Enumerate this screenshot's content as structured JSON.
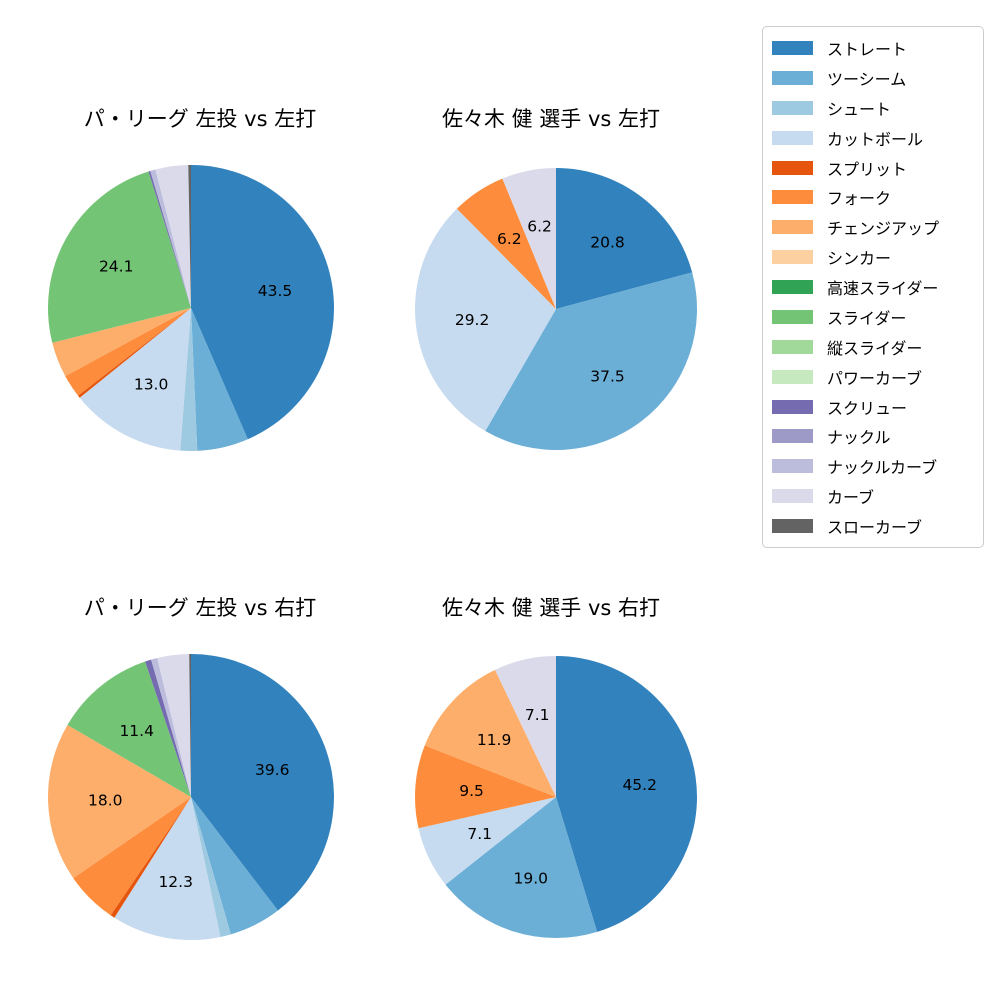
{
  "palette": {
    "ストレート": "#3182bd",
    "ツーシーム": "#6baed6",
    "シュート": "#9ecae1",
    "カットボール": "#c6dbef",
    "スプリット": "#e6550d",
    "フォーク": "#fd8d3c",
    "チェンジアップ": "#fdae6b",
    "シンカー": "#fdd0a2",
    "高速スライダー": "#31a354",
    "スライダー": "#74c476",
    "縦スライダー": "#a1d99b",
    "パワーカーブ": "#c7e9c0",
    "スクリュー": "#756bb1",
    "ナックル": "#9e9ac8",
    "ナックルカーブ": "#bcbddc",
    "カーブ": "#dadaeb",
    "スローカーブ": "#636363"
  },
  "legend": {
    "items": [
      {
        "label": "ストレート",
        "color": "#3182bd"
      },
      {
        "label": "ツーシーム",
        "color": "#6baed6"
      },
      {
        "label": "シュート",
        "color": "#9ecae1"
      },
      {
        "label": "カットボール",
        "color": "#c6dbef"
      },
      {
        "label": "スプリット",
        "color": "#e6550d"
      },
      {
        "label": "フォーク",
        "color": "#fd8d3c"
      },
      {
        "label": "チェンジアップ",
        "color": "#fdae6b"
      },
      {
        "label": "シンカー",
        "color": "#fdd0a2"
      },
      {
        "label": "高速スライダー",
        "color": "#31a354"
      },
      {
        "label": "スライダー",
        "color": "#74c476"
      },
      {
        "label": "縦スライダー",
        "color": "#a1d99b"
      },
      {
        "label": "パワーカーブ",
        "color": "#c7e9c0"
      },
      {
        "label": "スクリュー",
        "color": "#756bb1"
      },
      {
        "label": "ナックル",
        "color": "#9e9ac8"
      },
      {
        "label": "ナックルカーブ",
        "color": "#bcbddc"
      },
      {
        "label": "カーブ",
        "color": "#dadaeb"
      },
      {
        "label": "スローカーブ",
        "color": "#636363"
      }
    ]
  },
  "chart_data": [
    {
      "type": "pie",
      "title": "パ・リーグ 左投 vs 左打",
      "direction": "clockwise",
      "start": "top",
      "slices": [
        {
          "label": "ストレート",
          "value": 43.5,
          "pct_label": "43.5"
        },
        {
          "label": "ツーシーム",
          "value": 5.8,
          "pct_label": null
        },
        {
          "label": "シュート",
          "value": 1.9,
          "pct_label": null
        },
        {
          "label": "カットボール",
          "value": 13.0,
          "pct_label": "13.0"
        },
        {
          "label": "スプリット",
          "value": 0.3,
          "pct_label": null
        },
        {
          "label": "フォーク",
          "value": 2.6,
          "pct_label": null
        },
        {
          "label": "チェンジアップ",
          "value": 4.0,
          "pct_label": null
        },
        {
          "label": "スライダー",
          "value": 24.1,
          "pct_label": "24.1"
        },
        {
          "label": "スクリュー",
          "value": 0.2,
          "pct_label": null
        },
        {
          "label": "ナックルカーブ",
          "value": 0.6,
          "pct_label": null
        },
        {
          "label": "カーブ",
          "value": 3.7,
          "pct_label": null
        },
        {
          "label": "スローカーブ",
          "value": 0.3,
          "pct_label": null
        }
      ]
    },
    {
      "type": "pie",
      "title": "佐々木 健 選手 vs 左打",
      "direction": "clockwise",
      "start": "top",
      "slices": [
        {
          "label": "ストレート",
          "value": 20.8,
          "pct_label": "20.8"
        },
        {
          "label": "ツーシーム",
          "value": 37.5,
          "pct_label": "37.5"
        },
        {
          "label": "カットボール",
          "value": 29.2,
          "pct_label": "29.2"
        },
        {
          "label": "フォーク",
          "value": 6.2,
          "pct_label": "6.2"
        },
        {
          "label": "カーブ",
          "value": 6.2,
          "pct_label": "6.2"
        }
      ]
    },
    {
      "type": "pie",
      "title": "パ・リーグ 左投 vs 右打",
      "direction": "clockwise",
      "start": "top",
      "slices": [
        {
          "label": "ストレート",
          "value": 39.6,
          "pct_label": "39.6"
        },
        {
          "label": "ツーシーム",
          "value": 5.9,
          "pct_label": null
        },
        {
          "label": "シュート",
          "value": 1.2,
          "pct_label": null
        },
        {
          "label": "カットボール",
          "value": 12.3,
          "pct_label": "12.3"
        },
        {
          "label": "スプリット",
          "value": 0.5,
          "pct_label": null
        },
        {
          "label": "フォーク",
          "value": 5.9,
          "pct_label": null
        },
        {
          "label": "チェンジアップ",
          "value": 18.0,
          "pct_label": "18.0"
        },
        {
          "label": "スライダー",
          "value": 11.4,
          "pct_label": "11.4"
        },
        {
          "label": "スクリュー",
          "value": 0.7,
          "pct_label": null
        },
        {
          "label": "ナックルカーブ",
          "value": 0.7,
          "pct_label": null
        },
        {
          "label": "カーブ",
          "value": 3.6,
          "pct_label": null
        },
        {
          "label": "スローカーブ",
          "value": 0.2,
          "pct_label": null
        }
      ]
    },
    {
      "type": "pie",
      "title": "佐々木 健 選手 vs 右打",
      "direction": "clockwise",
      "start": "top",
      "slices": [
        {
          "label": "ストレート",
          "value": 45.2,
          "pct_label": "45.2"
        },
        {
          "label": "ツーシーム",
          "value": 19.0,
          "pct_label": "19.0"
        },
        {
          "label": "カットボール",
          "value": 7.1,
          "pct_label": "7.1"
        },
        {
          "label": "フォーク",
          "value": 9.5,
          "pct_label": "9.5"
        },
        {
          "label": "チェンジアップ",
          "value": 11.9,
          "pct_label": "11.9"
        },
        {
          "label": "カーブ",
          "value": 7.1,
          "pct_label": "7.1"
        }
      ]
    }
  ]
}
